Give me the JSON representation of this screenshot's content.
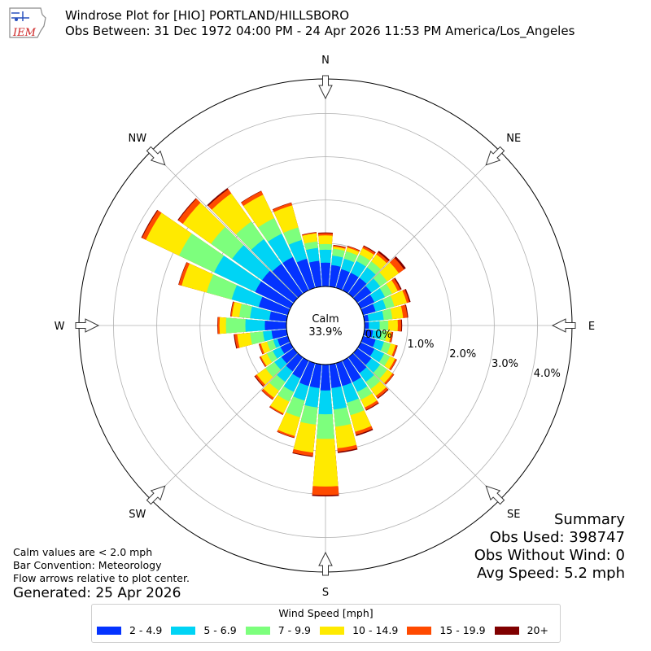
{
  "header": {
    "logo_text": "IEM",
    "title_line1": "Windrose Plot for [HIO] PORTLAND/HILLSBORO",
    "title_line2": "Obs Between: 31 Dec 1972 04:00 PM - 24 Apr 2026 11:53 PM America/Los_Angeles"
  },
  "notes": {
    "line1": "Calm values are < 2.0 mph",
    "line2": "Bar Convention: Meteorology",
    "line3": "Flow arrows relative to plot center.",
    "generated": "Generated: 25 Apr 2026"
  },
  "summary": {
    "title": "Summary",
    "obs_used": "Obs Used: 398747",
    "obs_without_wind": "Obs Without Wind: 0",
    "avg_speed": "Avg Speed: 5.2 mph"
  },
  "chart_data": {
    "type": "windrose",
    "calm_label": "Calm",
    "calm_value": "33.9%",
    "radial_tick_labels": [
      "0.0%",
      "1.0%",
      "2.0%",
      "3.0%",
      "4.0%"
    ],
    "radial_ticks": [
      0,
      1,
      2,
      3,
      4
    ],
    "rmax": 4.8,
    "compass_labels": [
      "N",
      "NE",
      "E",
      "SE",
      "S",
      "SW",
      "W",
      "NW"
    ],
    "legend_title": "Wind Speed [mph]",
    "bins": [
      {
        "label": "2 - 4.9",
        "color": "#0433ff"
      },
      {
        "label": "5 - 6.9",
        "color": "#00d4f5"
      },
      {
        "label": "7 - 9.9",
        "color": "#7dff7d"
      },
      {
        "label": "10 - 14.9",
        "color": "#ffea00"
      },
      {
        "label": "15 - 19.9",
        "color": "#ff4a00"
      },
      {
        "label": "20+",
        "color": "#800000"
      }
    ],
    "directions": [
      0,
      10,
      20,
      30,
      40,
      50,
      60,
      70,
      80,
      90,
      100,
      110,
      120,
      130,
      140,
      150,
      160,
      170,
      180,
      190,
      200,
      210,
      220,
      230,
      240,
      250,
      260,
      270,
      280,
      290,
      300,
      310,
      320,
      330,
      340,
      350
    ],
    "cumulative": [
      [
        0.55,
        0.85,
        0.98,
        1.18,
        1.23,
        1.25
      ],
      [
        0.5,
        0.72,
        0.88,
        0.93,
        0.96,
        0.97
      ],
      [
        0.45,
        0.7,
        0.88,
        0.97,
        1.0,
        1.01
      ],
      [
        0.45,
        0.75,
        0.92,
        1.08,
        1.13,
        1.15
      ],
      [
        0.45,
        0.75,
        0.92,
        1.12,
        1.18,
        1.22
      ],
      [
        0.4,
        0.65,
        0.85,
        1.18,
        1.33,
        1.38
      ],
      [
        0.35,
        0.62,
        0.8,
        0.95,
        1.02,
        1.05
      ],
      [
        0.3,
        0.55,
        0.75,
        1.05,
        1.11,
        1.14
      ],
      [
        0.1,
        0.45,
        0.65,
        0.9,
        1.0,
        1.02
      ],
      [
        0.1,
        0.35,
        0.55,
        0.77,
        0.85,
        0.87
      ],
      [
        0.2,
        0.4,
        0.52,
        0.62,
        0.66,
        0.67
      ],
      [
        0.3,
        0.5,
        0.66,
        0.78,
        0.82,
        0.83
      ],
      [
        0.35,
        0.6,
        0.75,
        0.88,
        0.92,
        0.93
      ],
      [
        0.4,
        0.65,
        0.85,
        1.0,
        1.04,
        1.05
      ],
      [
        0.45,
        0.7,
        0.9,
        1.1,
        1.16,
        1.18
      ],
      [
        0.55,
        0.8,
        1.0,
        1.2,
        1.26,
        1.28
      ],
      [
        0.55,
        0.95,
        1.25,
        1.65,
        1.72,
        1.75
      ],
      [
        0.55,
        1.05,
        1.45,
        1.95,
        2.03,
        2.06
      ],
      [
        0.6,
        1.15,
        1.72,
        2.82,
        3.02,
        3.05
      ],
      [
        0.55,
        1.0,
        1.4,
        2.05,
        2.13,
        2.15
      ],
      [
        0.55,
        0.9,
        1.3,
        1.75,
        1.79,
        1.8
      ],
      [
        0.45,
        0.8,
        1.05,
        1.35,
        1.38,
        1.39
      ],
      [
        0.4,
        0.7,
        0.95,
        1.15,
        1.2,
        1.21
      ],
      [
        0.35,
        0.55,
        0.8,
        1.05,
        1.1,
        1.12
      ],
      [
        0.25,
        0.45,
        0.6,
        0.75,
        0.78,
        0.79
      ],
      [
        0.25,
        0.35,
        0.5,
        0.65,
        0.69,
        0.7
      ],
      [
        0.35,
        0.55,
        0.85,
        1.15,
        1.21,
        1.23
      ],
      [
        0.5,
        0.95,
        1.4,
        1.55,
        1.59,
        1.6
      ],
      [
        0.4,
        0.85,
        1.1,
        1.27,
        1.3,
        1.31
      ],
      [
        0.7,
        1.35,
        1.95,
        2.55,
        2.62,
        2.63
      ],
      [
        0.9,
        1.95,
        2.85,
        3.7,
        3.8,
        3.82
      ],
      [
        0.9,
        1.75,
        2.35,
        3.15,
        3.28,
        3.3
      ],
      [
        0.85,
        1.55,
        2.05,
        2.85,
        2.97,
        3.0
      ],
      [
        0.85,
        1.45,
        1.85,
        2.45,
        2.54,
        2.55
      ],
      [
        0.7,
        1.15,
        1.45,
        1.98,
        2.04,
        2.05
      ],
      [
        0.6,
        0.9,
        1.05,
        1.24,
        1.26,
        1.27
      ]
    ]
  }
}
